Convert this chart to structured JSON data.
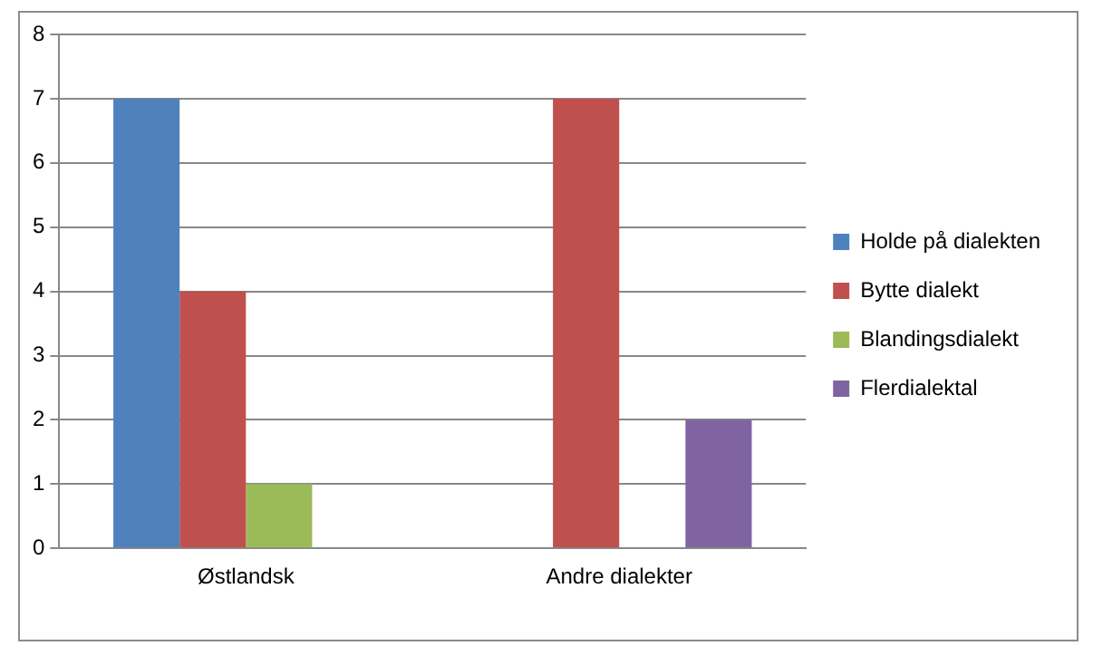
{
  "chart_data": {
    "type": "bar",
    "categories": [
      "Østlandsk",
      "Andre dialekter"
    ],
    "series": [
      {
        "name": "Holde på dialekten",
        "color": "#4f81bd",
        "values": [
          7,
          0
        ]
      },
      {
        "name": "Bytte dialekt",
        "color": "#c0504d",
        "values": [
          4,
          7
        ]
      },
      {
        "name": "Blandingsdialekt",
        "color": "#9bbb59",
        "values": [
          1,
          0
        ]
      },
      {
        "name": "Flerdialektal",
        "color": "#8064a2",
        "values": [
          0,
          2
        ]
      }
    ],
    "ylim": [
      0,
      8
    ],
    "yticks": [
      0,
      1,
      2,
      3,
      4,
      5,
      6,
      7,
      8
    ],
    "grid": "y",
    "legend": "right"
  }
}
